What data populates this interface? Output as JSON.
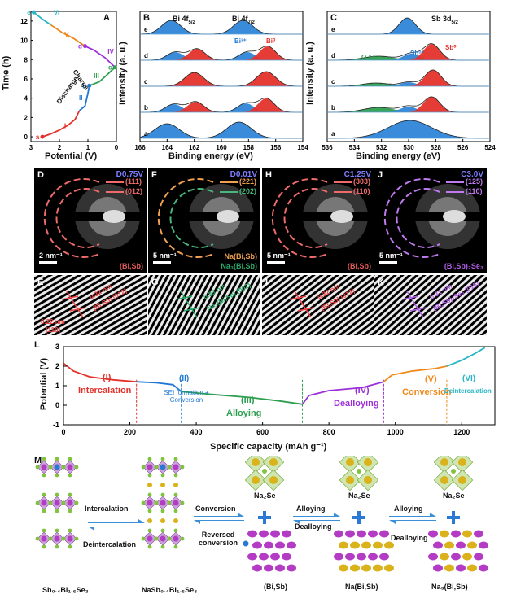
{
  "panel_a": {
    "label": "A",
    "ylabel": "Time (h)",
    "xlabel": "Potential (V)",
    "yticks": [
      "0",
      "2",
      "4",
      "6",
      "8",
      "10",
      "12"
    ],
    "xticks": [
      "3",
      "2",
      "1",
      "0"
    ],
    "points": [
      "a",
      "b",
      "c",
      "d",
      "e"
    ],
    "stages": [
      "I",
      "II",
      "III",
      "IV",
      "V",
      "VI"
    ],
    "discharge": "Discharge",
    "charge": "Charge",
    "chart_data": {
      "type": "line",
      "xlabel": "Potential (V)",
      "ylabel": "Time (h)",
      "xlim": [
        3,
        0
      ],
      "ylim": [
        -0.5,
        13
      ],
      "segments": [
        {
          "stage": "I",
          "color": "#e4312b",
          "x": [
            2.6,
            2.3,
            2.0,
            1.7,
            1.45,
            1.3
          ],
          "y": [
            0,
            0.3,
            0.7,
            1.2,
            1.8,
            2.7
          ]
        },
        {
          "stage": "II",
          "color": "#1f77d4",
          "x": [
            1.3,
            1.1,
            1.0,
            0.95
          ],
          "y": [
            2.7,
            3.2,
            4.5,
            5.3
          ]
        },
        {
          "stage": "III",
          "color": "#2e9e4f",
          "x": [
            0.95,
            0.6,
            0.3,
            0.05
          ],
          "y": [
            5.3,
            5.7,
            6.5,
            7.2
          ]
        },
        {
          "stage": "IV",
          "color": "#9b30d9",
          "x": [
            0.05,
            0.4,
            0.8,
            1.1
          ],
          "y": [
            7.2,
            8.2,
            9.0,
            9.4
          ]
        },
        {
          "stage": "V",
          "color": "#f08a1d",
          "x": [
            1.1,
            1.5,
            1.9,
            2.3
          ],
          "y": [
            9.4,
            10.2,
            10.8,
            11.6
          ]
        },
        {
          "stage": "VI",
          "color": "#27b6c6",
          "x": [
            2.3,
            2.6,
            2.9
          ],
          "y": [
            11.6,
            12.2,
            12.9
          ]
        }
      ]
    }
  },
  "panel_b": {
    "label": "B",
    "title1": "Bi 4f",
    "sub1": "5/2",
    "title2": "Bi 4f",
    "sub2": "7/2",
    "ylabel": "Intensity (a. u.)",
    "xlabel": "Binding energy (eV)",
    "xticks": [
      "166",
      "164",
      "162",
      "160",
      "158",
      "156",
      "154"
    ],
    "rows": [
      "e",
      "d",
      "c",
      "b",
      "a"
    ],
    "bi3": "Bi³⁺",
    "bi0": "Bi⁰"
  },
  "panel_c": {
    "label": "C",
    "title": "Sb 3d",
    "sub": "5/2",
    "ylabel": "Intensity (a. u.)",
    "xlabel": "Binding energy (eV)",
    "xticks": [
      "536",
      "534",
      "532",
      "530",
      "528",
      "526",
      "524"
    ],
    "rows": [
      "e",
      "d",
      "c",
      "b",
      "a"
    ],
    "o1s": "O 1s",
    "sb3": "Sb³⁺",
    "sb0": "Sb⁰"
  },
  "tem": [
    {
      "label": "D",
      "volt": "D0.75V",
      "rings": [
        "(111)",
        "(012)"
      ],
      "scale": "2 nm⁻¹",
      "phase": "(Bi,Sb)",
      "phase_color": "#e85a5a",
      "ring_color": "#ef6b6b"
    },
    {
      "label": "F",
      "volt": "D0.01V",
      "rings": [
        "(221)",
        "(202)"
      ],
      "scale": "5 nm⁻¹",
      "phase": "Na(Bi,Sb)",
      "phase2": "Na₃(Bi,Sb)",
      "phase_color": "#f0a050",
      "phase2_color": "#2aa868",
      "ring_color": "#f0a050",
      "ring2_color": "#47b77e"
    },
    {
      "label": "H",
      "volt": "C1.25V",
      "rings": [
        "(303)",
        "(110)"
      ],
      "scale": "5 nm⁻¹",
      "phase": "(Bi,Sb)",
      "phase_color": "#e85a5a",
      "ring_color": "#ef6b6b"
    },
    {
      "label": "J",
      "volt": "C3.0V",
      "rings": [
        "(125)",
        "(110)"
      ],
      "scale": "5 nm⁻¹",
      "phase": "(Bi,Sb)₂Se₃",
      "phase_color": "#b35ee8",
      "ring_color": "#c07af0"
    }
  ],
  "hrtem": [
    {
      "label": "E",
      "text1": "0.32 nm",
      "text2": "(Bi,Sb) (012)",
      "text3": "0.22 nm",
      "text4": "(110)",
      "color": "#ee4444"
    },
    {
      "label": "G",
      "text1": "0.33 nm",
      "text2": "Na₃(Bi,Sb) (002)",
      "color": "#2aa868"
    },
    {
      "label": "I",
      "text1": "0.32 nm",
      "text2": "(Bi,Sb) (012)",
      "color": "#ee4444"
    },
    {
      "label": "K",
      "text1": "0.31 nm",
      "text2": "(Bi,Sb)₂Se₃ (015)",
      "color": "#b35ee8"
    }
  ],
  "panel_l": {
    "label": "L",
    "ylabel": "Potential (V)",
    "xlabel": "Specific capacity (mAh g⁻¹)",
    "yticks": [
      "-1",
      "0",
      "1",
      "2",
      "3"
    ],
    "xticks": [
      "0",
      "200",
      "400",
      "600",
      "800",
      "1000",
      "1200"
    ],
    "stages": [
      {
        "num": "(I)",
        "name": "Intercalation",
        "color": "#e4312b"
      },
      {
        "num": "(II)",
        "name": "SEI formation + Conversion",
        "color": "#1f77d4"
      },
      {
        "num": "(III)",
        "name": "Alloying",
        "color": "#2e9e4f"
      },
      {
        "num": "(IV)",
        "name": "Dealloying",
        "color": "#9b30d9"
      },
      {
        "num": "(V)",
        "name": "Conversion",
        "color": "#f08a1d"
      },
      {
        "num": "(VI)",
        "name": "Deintercalation",
        "color": "#27b6c6"
      }
    ],
    "chart_data": {
      "type": "line",
      "xlabel": "Specific capacity (mAh g⁻¹)",
      "ylabel": "Potential (V)",
      "xlim": [
        0,
        1300
      ],
      "ylim": [
        -1,
        3
      ],
      "boundaries": [
        220,
        355,
        720,
        965,
        1155
      ],
      "segments": [
        {
          "stage": "I",
          "color": "#e4312b",
          "x": [
            0,
            30,
            80,
            150,
            220
          ],
          "y": [
            2.15,
            1.75,
            1.45,
            1.3,
            1.2
          ]
        },
        {
          "stage": "II",
          "color": "#1f77d4",
          "x": [
            220,
            280,
            330,
            355
          ],
          "y": [
            1.2,
            1.15,
            1.05,
            0.7
          ]
        },
        {
          "stage": "III",
          "color": "#2e9e4f",
          "x": [
            355,
            450,
            560,
            650,
            720
          ],
          "y": [
            0.7,
            0.55,
            0.4,
            0.22,
            0.05
          ]
        },
        {
          "stage": "IV",
          "color": "#9b30d9",
          "x": [
            720,
            740,
            800,
            900,
            965
          ],
          "y": [
            0.05,
            0.5,
            0.75,
            0.9,
            1.2
          ]
        },
        {
          "stage": "V",
          "color": "#f08a1d",
          "x": [
            965,
            990,
            1050,
            1120,
            1155
          ],
          "y": [
            1.2,
            1.55,
            1.75,
            1.88,
            2.0
          ]
        },
        {
          "stage": "VI",
          "color": "#27b6c6",
          "x": [
            1155,
            1200,
            1240,
            1270
          ],
          "y": [
            2.0,
            2.3,
            2.65,
            2.95
          ]
        }
      ]
    }
  },
  "panel_m": {
    "label": "M",
    "compounds": [
      "Sb₀.₄Bi₁.₆Se₃",
      "NaSb₀.₄Bi₁.₆Se₃",
      "(Bi,Sb)",
      "Na(Bi,Sb)",
      "Na₃(Bi,Sb)"
    ],
    "na2se": "Na₂Se",
    "arrows": {
      "intercalation": "Intercalation",
      "deintercalation": "Deintercalation",
      "conversion": "Conversion",
      "reversed": "Reversed conversion",
      "alloying": "Alloying",
      "dealloying": "Dealloying"
    }
  }
}
